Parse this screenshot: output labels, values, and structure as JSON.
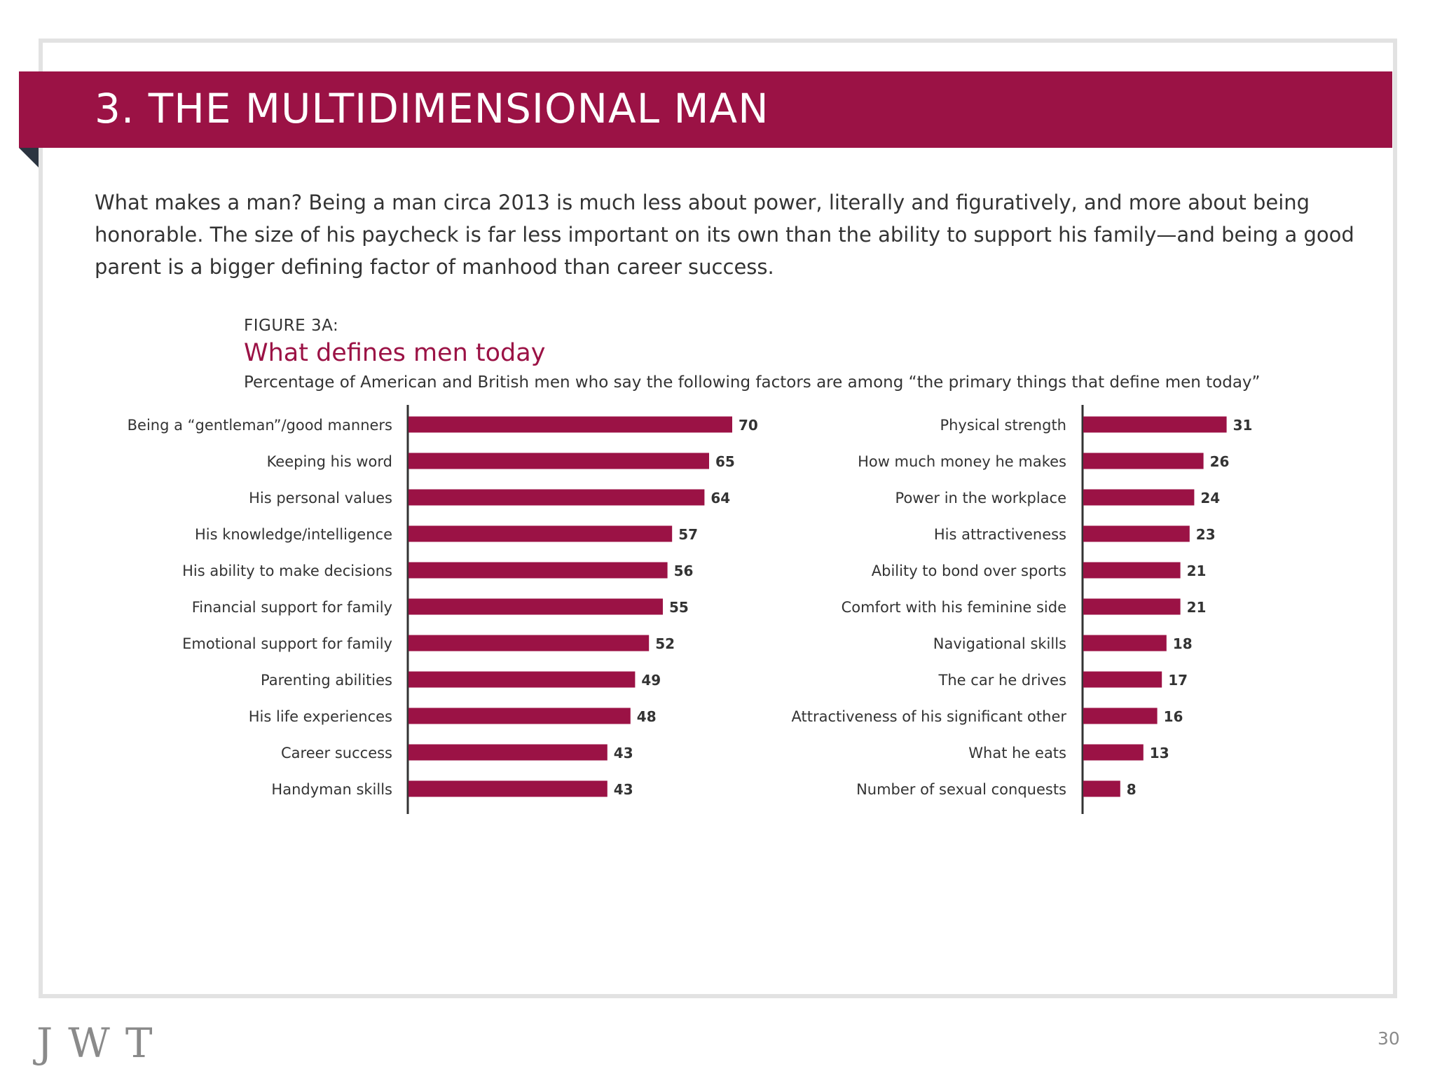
{
  "colors": {
    "accent": "#9b1245",
    "axis": "#333333",
    "frame": "#e2e2e2"
  },
  "header": {
    "title": "3. THE MULTIDIMENSIONAL MAN"
  },
  "intro": {
    "text": "What makes a man? Being a man circa 2013 is much less about power, literally and figuratively, and more about being honorable. The size of his paycheck is far less important on its own than the ability to support his family—and being a good parent is a bigger defining factor of manhood than career success."
  },
  "figure": {
    "label": "FIGURE 3A:",
    "title": "What defines men today",
    "subtitle": "Percentage of American and British men who say the following factors are among “the primary things that define men today”"
  },
  "chart_data": [
    {
      "type": "bar",
      "orientation": "horizontal",
      "categories": [
        "Being a “gentleman”/good manners",
        "Keeping his word",
        "His personal values",
        "His knowledge/intelligence",
        "His ability to make decisions",
        "Financial support for family",
        "Emotional support for family",
        "Parenting abilities",
        "His life experiences",
        "Career success",
        "Handyman skills"
      ],
      "values": [
        70,
        65,
        64,
        57,
        56,
        55,
        52,
        49,
        48,
        43,
        43
      ],
      "xlim": [
        0,
        100
      ],
      "grid": false,
      "legend": "none"
    },
    {
      "type": "bar",
      "orientation": "horizontal",
      "categories": [
        "Physical strength",
        "How much money he makes",
        "Power in the workplace",
        "His attractiveness",
        "Ability to bond over sports",
        "Comfort with his feminine side",
        "Navigational skills",
        "The car he drives",
        "Attractiveness of his significant other",
        "What he eats",
        "Number of sexual conquests"
      ],
      "values": [
        31,
        26,
        24,
        23,
        21,
        21,
        18,
        17,
        16,
        13,
        8
      ],
      "xlim": [
        0,
        100
      ],
      "grid": false,
      "legend": "none"
    }
  ],
  "footer": {
    "logo": "JWT",
    "page_number": "30"
  }
}
